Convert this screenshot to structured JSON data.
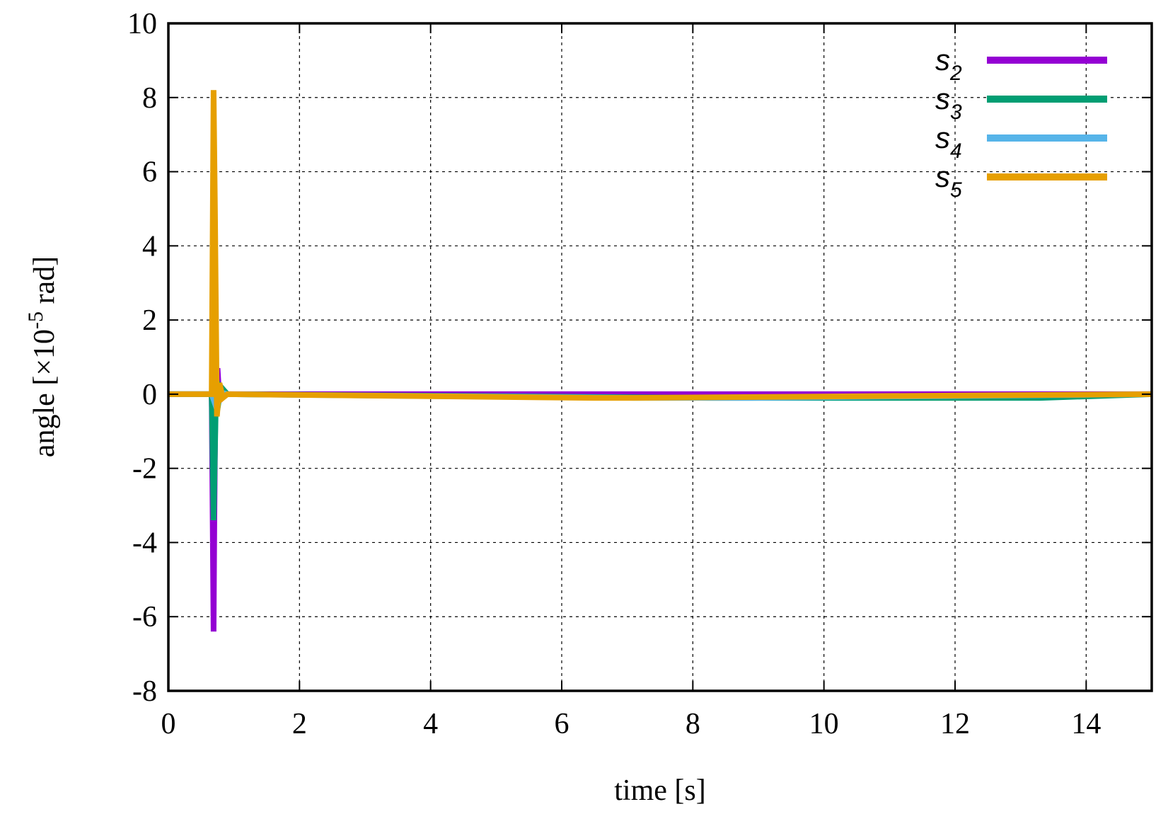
{
  "chart_data": {
    "type": "line",
    "title": "",
    "xlabel": "time [s]",
    "ylabel_parts": {
      "prefix": "angle [×10",
      "exponent": "-5",
      "suffix": " rad]"
    },
    "xlim": [
      0,
      15
    ],
    "ylim": [
      -8,
      10
    ],
    "xticks": [
      0,
      2,
      4,
      6,
      8,
      10,
      12,
      14
    ],
    "yticks": [
      -8,
      -6,
      -4,
      -2,
      0,
      2,
      4,
      6,
      8,
      10
    ],
    "xtick_labels": [
      "0",
      "2",
      "4",
      "6",
      "8",
      "10",
      "12",
      "14"
    ],
    "ytick_labels": [
      "-8",
      "-6",
      "-4",
      "-2",
      "0",
      "2",
      "4",
      "6",
      "8",
      "10"
    ],
    "grid": true,
    "legend_position": "top-right",
    "series": [
      {
        "name": "s",
        "subscript": "2",
        "color": "#9400d3",
        "x": [
          0,
          0.66,
          0.69,
          0.7,
          0.72,
          0.75,
          0.78,
          0.82,
          0.9,
          6.5,
          7.0,
          8.2,
          9.0,
          10.4,
          13.3,
          15
        ],
        "y": [
          0,
          0,
          -6.4,
          -3.5,
          0.4,
          0.7,
          -0.2,
          0.1,
          0,
          0,
          0,
          0,
          0,
          0,
          0,
          0
        ]
      },
      {
        "name": "s",
        "subscript": "3",
        "color": "#009e73",
        "x": [
          0,
          0.66,
          0.69,
          0.72,
          0.75,
          0.8,
          0.9,
          8.3,
          8.7,
          10.4,
          13.3,
          15
        ],
        "y": [
          0,
          0,
          -3.4,
          -0.6,
          -0.4,
          0.2,
          0,
          -0.1,
          -0.1,
          -0.1,
          -0.1,
          0
        ]
      },
      {
        "name": "s",
        "subscript": "4",
        "color": "#56b4e9",
        "x": [
          0,
          0.66,
          0.7,
          0.74,
          0.8,
          0.9,
          7.1,
          7.6,
          8.3,
          8.9,
          15
        ],
        "y": [
          0,
          0,
          -0.2,
          0.1,
          0.05,
          0,
          -0.1,
          -0.1,
          -0.1,
          -0.1,
          0
        ]
      },
      {
        "name": "s",
        "subscript": "5",
        "color": "#e69f00",
        "x": [
          0,
          0.66,
          0.69,
          0.71,
          0.74,
          0.78,
          0.83,
          0.9,
          6.5,
          6.9,
          7.1,
          15
        ],
        "y": [
          0,
          0,
          8.2,
          5.0,
          -0.6,
          0.3,
          -0.1,
          0,
          -0.1,
          -0.1,
          -0.1,
          0
        ]
      }
    ]
  }
}
